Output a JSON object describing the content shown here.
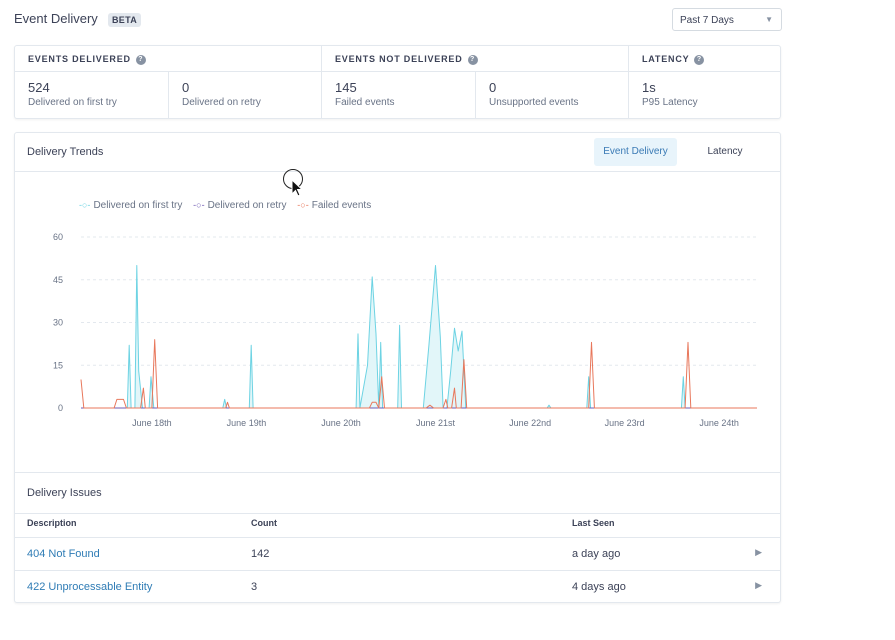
{
  "header": {
    "title": "Event Delivery",
    "badge": "BETA",
    "range": "Past 7 Days"
  },
  "summary": {
    "groups": [
      {
        "title": "EVENTS DELIVERED",
        "metrics": [
          {
            "value": "524",
            "label": "Delivered on first try"
          },
          {
            "value": "0",
            "label": "Delivered on retry"
          }
        ]
      },
      {
        "title": "EVENTS NOT DELIVERED",
        "metrics": [
          {
            "value": "145",
            "label": "Failed events"
          },
          {
            "value": "0",
            "label": "Unsupported events"
          }
        ]
      },
      {
        "title": "LATENCY",
        "metrics": [
          {
            "value": "1s",
            "label": "P95 Latency"
          }
        ]
      }
    ]
  },
  "trends": {
    "title": "Delivery Trends",
    "tabs": [
      "Event Delivery",
      "Latency"
    ],
    "legend": [
      "Delivered on first try",
      "Delivered on retry",
      "Failed events"
    ]
  },
  "chart_data": {
    "type": "area",
    "x_ticks": [
      "June 18th",
      "June 19th",
      "June 20th",
      "June 21st",
      "June 22nd",
      "June 23rd",
      "June 24th"
    ],
    "y_ticks": [
      "0",
      "15",
      "30",
      "45",
      "60"
    ],
    "ylim": [
      0,
      60
    ],
    "x_range_days": [
      17.25,
      24.4
    ],
    "series": [
      {
        "name": "Delivered on first try",
        "color": "#6dd3e3",
        "fill": "#e2f6f9",
        "points": [
          [
            17.74,
            0
          ],
          [
            17.76,
            22
          ],
          [
            17.78,
            0
          ],
          [
            17.82,
            0
          ],
          [
            17.84,
            50
          ],
          [
            17.86,
            13
          ],
          [
            17.9,
            0
          ],
          [
            17.97,
            0
          ],
          [
            17.99,
            11
          ],
          [
            18.02,
            0
          ],
          [
            18.75,
            0
          ],
          [
            18.77,
            3
          ],
          [
            18.79,
            0
          ],
          [
            19.03,
            0
          ],
          [
            19.05,
            22
          ],
          [
            19.07,
            0
          ],
          [
            20.16,
            0
          ],
          [
            20.18,
            26
          ],
          [
            20.2,
            0
          ],
          [
            20.28,
            15
          ],
          [
            20.33,
            46
          ],
          [
            20.37,
            26
          ],
          [
            20.4,
            0
          ],
          [
            20.42,
            23
          ],
          [
            20.44,
            0
          ],
          [
            20.6,
            0
          ],
          [
            20.62,
            29
          ],
          [
            20.64,
            0
          ],
          [
            20.87,
            0
          ],
          [
            20.93,
            22
          ],
          [
            21.0,
            50
          ],
          [
            21.05,
            25
          ],
          [
            21.08,
            0
          ],
          [
            21.12,
            0
          ],
          [
            21.16,
            13
          ],
          [
            21.2,
            28
          ],
          [
            21.24,
            20
          ],
          [
            21.28,
            27
          ],
          [
            21.32,
            0
          ],
          [
            22.18,
            0
          ],
          [
            22.2,
            1
          ],
          [
            22.22,
            0
          ],
          [
            22.6,
            0
          ],
          [
            22.62,
            11
          ],
          [
            22.64,
            0
          ],
          [
            23.6,
            0
          ],
          [
            23.62,
            11
          ],
          [
            23.64,
            0
          ]
        ]
      },
      {
        "name": "Delivered on retry",
        "color": "#6f5bb3",
        "fill": "none",
        "points": [
          [
            17.25,
            0
          ],
          [
            24.4,
            0
          ]
        ]
      },
      {
        "name": "Failed events",
        "color": "#e8775b",
        "fill": "none",
        "points": [
          [
            17.25,
            10
          ],
          [
            17.28,
            0
          ],
          [
            17.6,
            0
          ],
          [
            17.63,
            3
          ],
          [
            17.7,
            3
          ],
          [
            17.73,
            0
          ],
          [
            17.88,
            0
          ],
          [
            17.91,
            7
          ],
          [
            17.93,
            0
          ],
          [
            18.0,
            0
          ],
          [
            18.03,
            24
          ],
          [
            18.06,
            0
          ],
          [
            18.78,
            0
          ],
          [
            18.8,
            2
          ],
          [
            18.82,
            0
          ],
          [
            20.3,
            0
          ],
          [
            20.33,
            2
          ],
          [
            20.37,
            2
          ],
          [
            20.4,
            0
          ],
          [
            20.43,
            11
          ],
          [
            20.46,
            0
          ],
          [
            20.9,
            0
          ],
          [
            20.94,
            1
          ],
          [
            20.98,
            0
          ],
          [
            21.08,
            0
          ],
          [
            21.11,
            3
          ],
          [
            21.13,
            0
          ],
          [
            21.17,
            0
          ],
          [
            21.2,
            7
          ],
          [
            21.22,
            0
          ],
          [
            21.27,
            0
          ],
          [
            21.3,
            17
          ],
          [
            21.33,
            0
          ],
          [
            22.62,
            0
          ],
          [
            22.65,
            23
          ],
          [
            22.68,
            0
          ],
          [
            23.64,
            0
          ],
          [
            23.67,
            23
          ],
          [
            23.7,
            0
          ]
        ]
      }
    ]
  },
  "issues": {
    "title": "Delivery Issues",
    "columns": [
      "Description",
      "Count",
      "Last Seen"
    ],
    "rows": [
      {
        "description": "404 Not Found",
        "count": "142",
        "last_seen": "a day ago"
      },
      {
        "description": "422 Unprocessable Entity",
        "count": "3",
        "last_seen": "4 days ago"
      }
    ]
  }
}
